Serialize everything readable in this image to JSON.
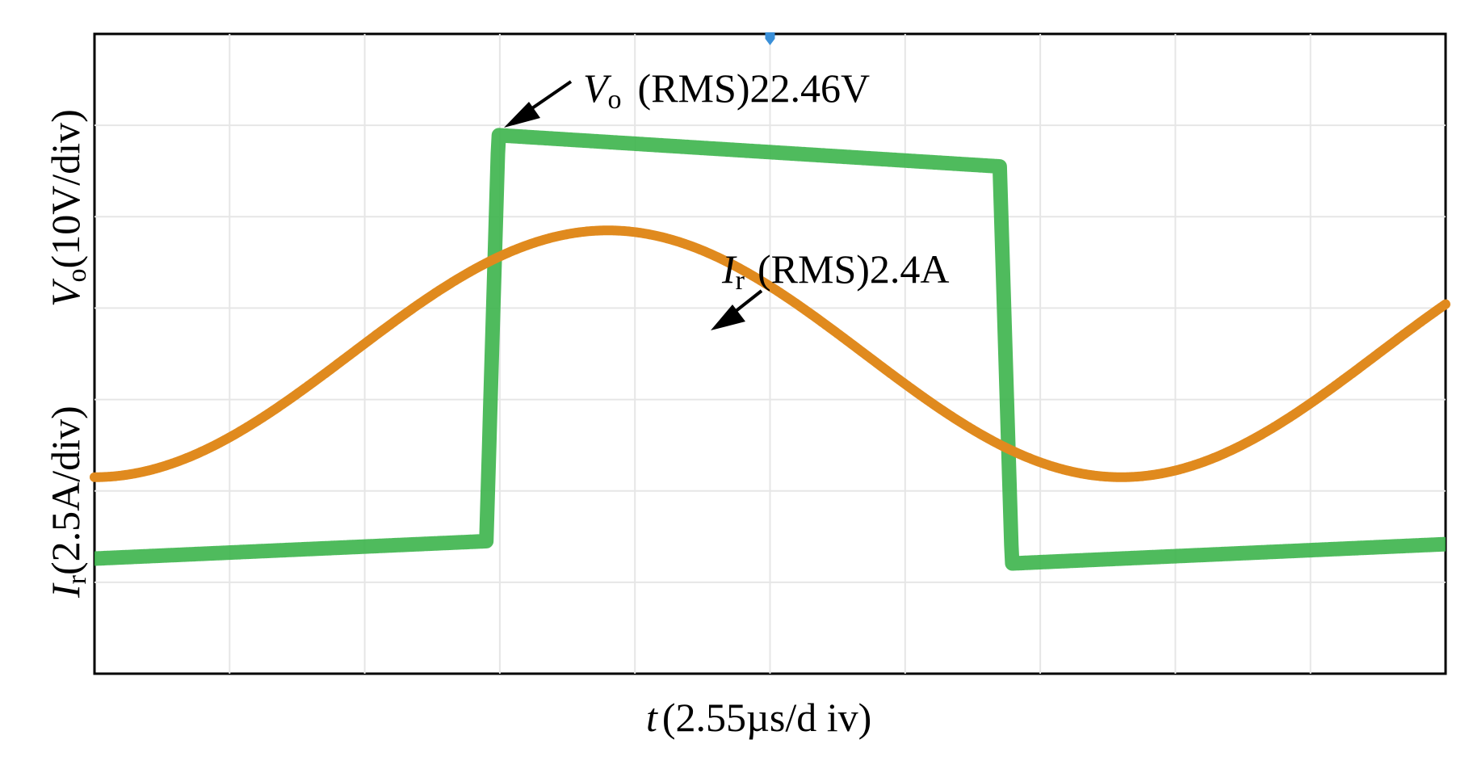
{
  "chart_data": {
    "type": "line",
    "title": "",
    "xlabel": {
      "symbol": "t",
      "text": "(2.55µs/d iv)"
    },
    "ylabels": [
      {
        "symbol": "V",
        "sub": "o",
        "text": "(10V/div)"
      },
      {
        "symbol": "I",
        "sub": "r",
        "text": "(2.5A/div)"
      }
    ],
    "grid": true,
    "x_divisions": 10,
    "y_divisions": 7,
    "xlim": [
      0,
      10
    ],
    "ylim": [
      -3.5,
      3.5
    ],
    "trigger_marker_x": 5,
    "series": [
      {
        "name_symbol": "V",
        "name_sub": "o",
        "annotation": "(RMS)22.46V",
        "color": "#3cb44b",
        "shape": "square",
        "period_div": 7.6,
        "phase_rise_div": 2.9,
        "high_start": 2.4,
        "high_end": 2.05,
        "low_start": -2.3,
        "low_end": -2.05
      },
      {
        "name_symbol": "I",
        "name_sub": "r",
        "annotation": "(RMS)2.4A",
        "color": "#e08a1e",
        "shape": "sine",
        "period_div": 7.6,
        "amplitude_div": 1.35,
        "peak_x_div": 3.8
      }
    ]
  }
}
